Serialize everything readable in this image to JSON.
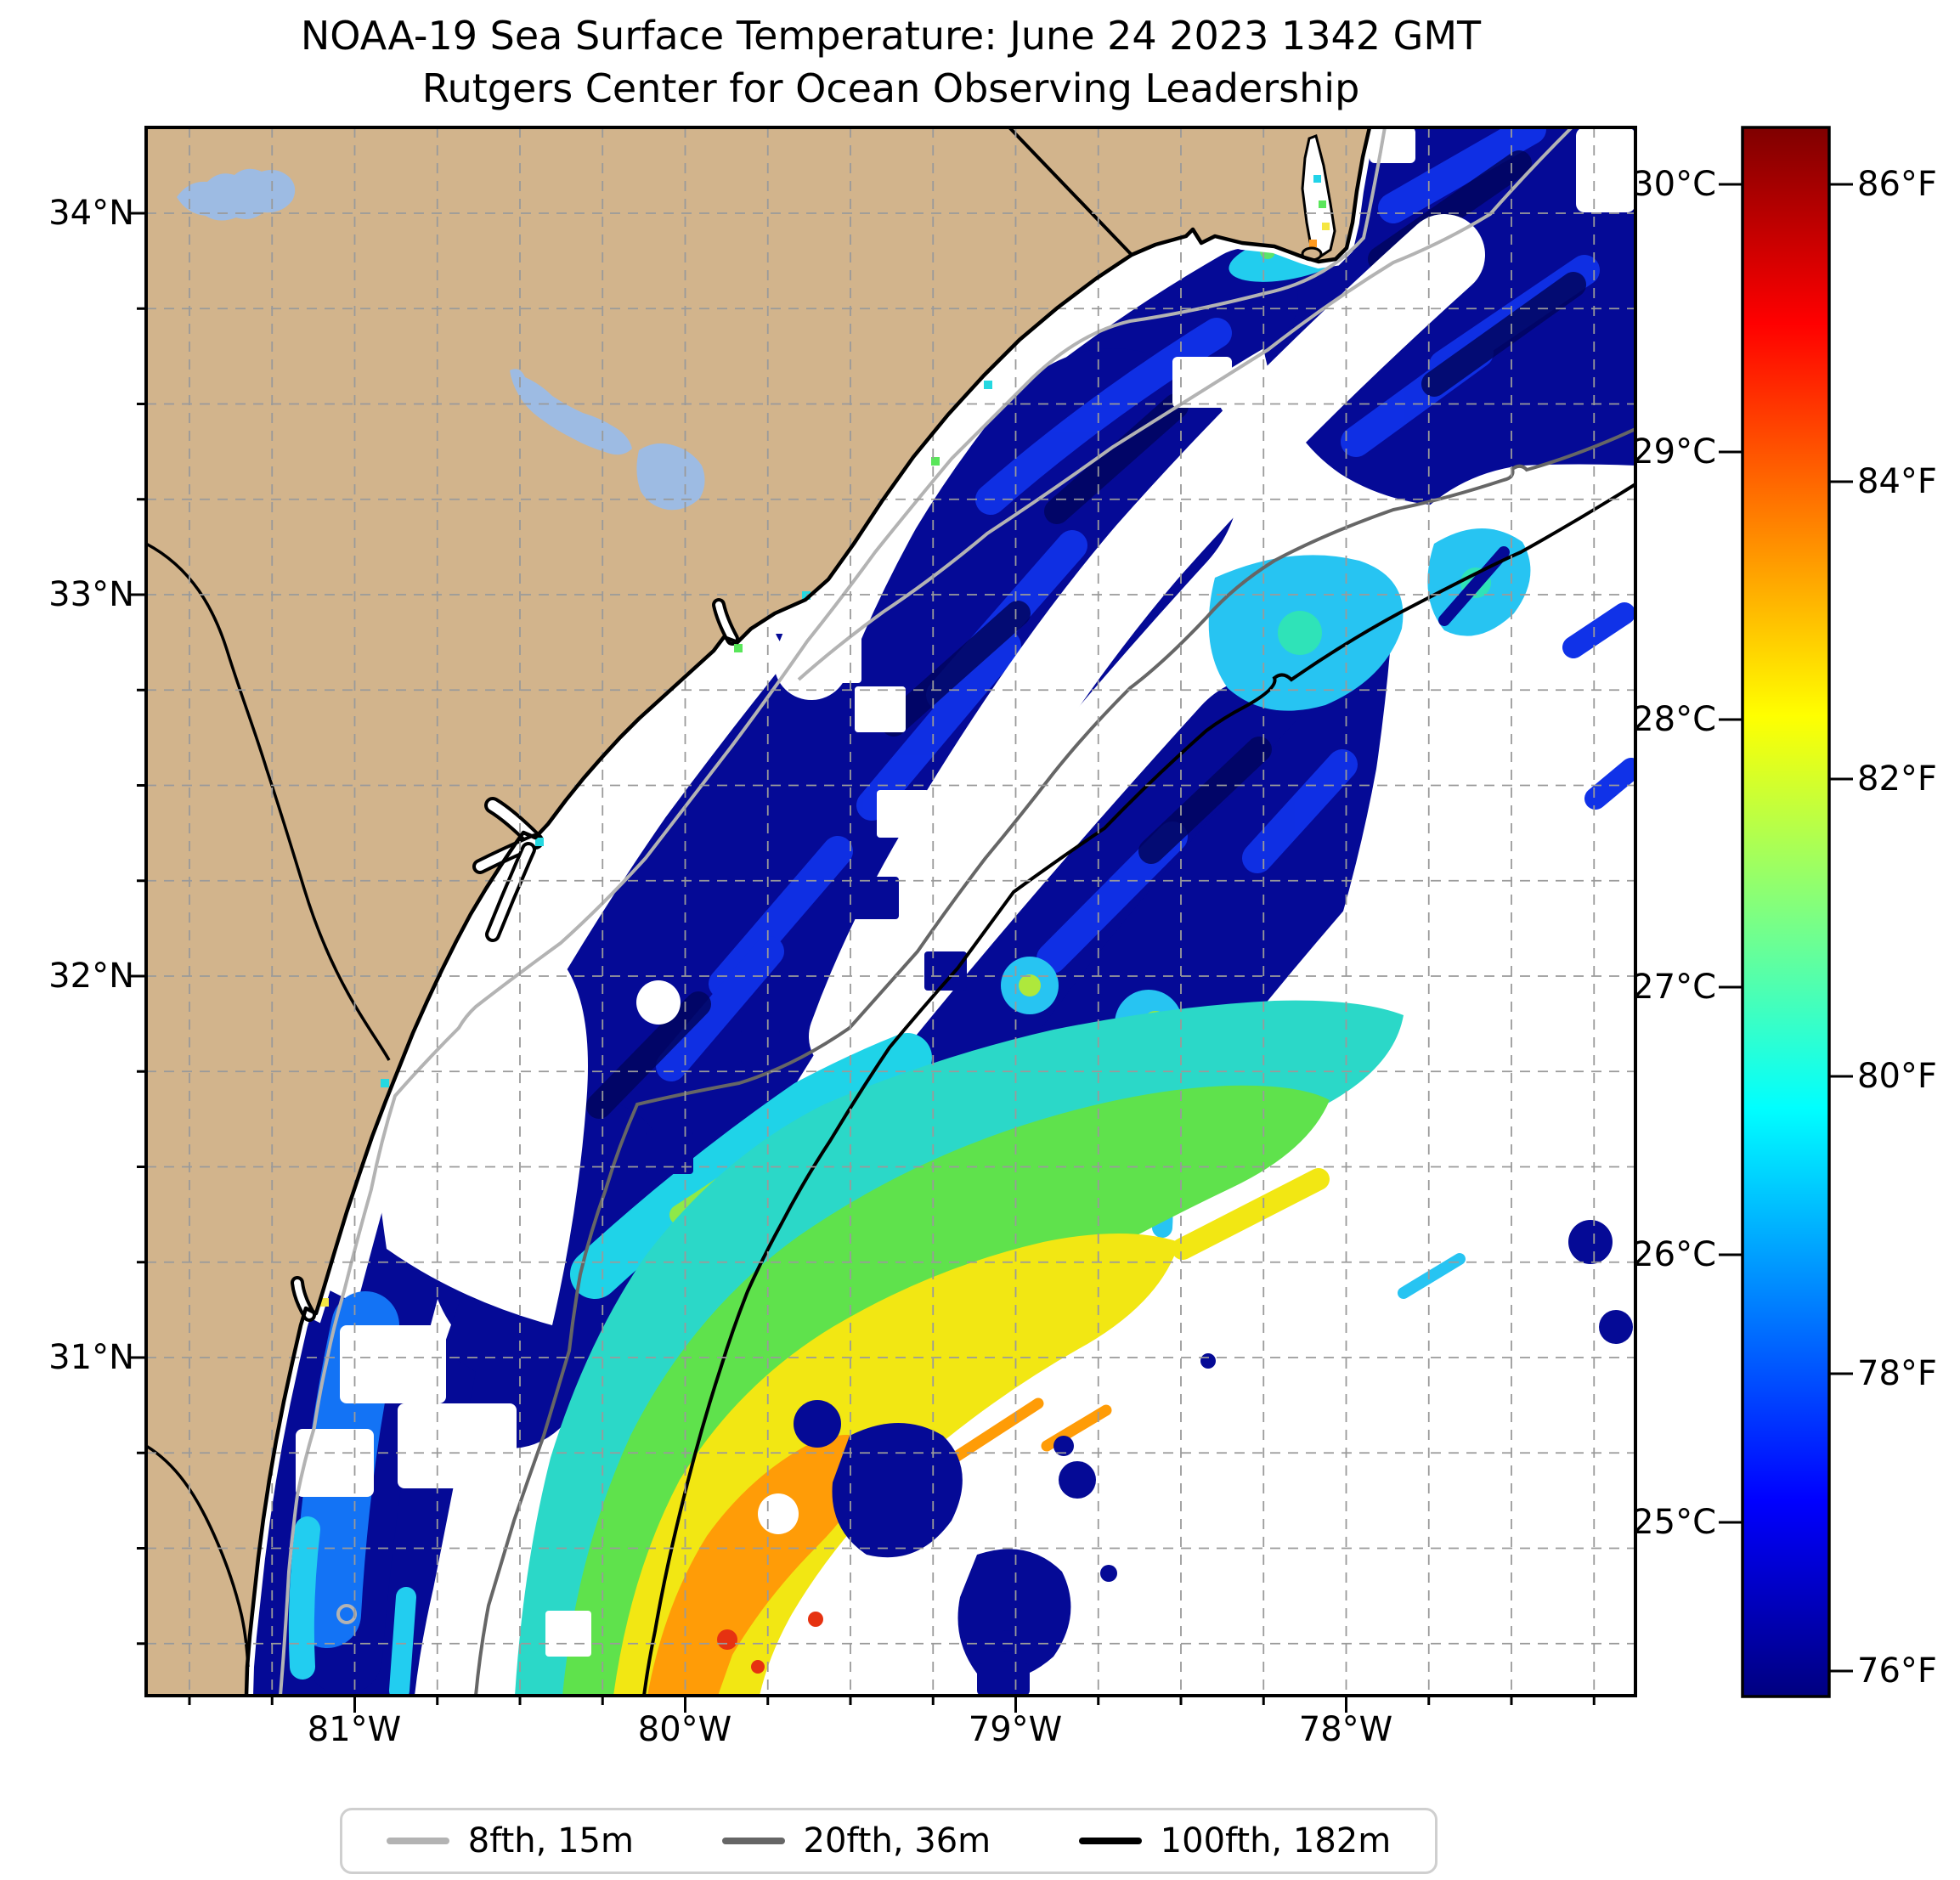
{
  "title": {
    "line1": "NOAA-19 Sea Surface Temperature: June 24 2023 1342 GMT",
    "line2": "Rutgers Center for Ocean Observing Leadership"
  },
  "map": {
    "x_axis": {
      "ticks": [
        "81°W",
        "80°W",
        "79°W",
        "78°W"
      ]
    },
    "y_axis": {
      "ticks": [
        "34°N",
        "33°N",
        "32°N",
        "31°N"
      ]
    },
    "grid": "0.25 degree dashed graticule",
    "colors": {
      "land": "#D2B48C",
      "lakes": "#9DBBE3",
      "clouds_no_data": "#FFFFFF",
      "coldest_water": "#050A96",
      "warm_core": "#FF9C07"
    }
  },
  "colorbar": {
    "celsius_labels": [
      "30°C",
      "29°C",
      "28°C",
      "27°C",
      "26°C",
      "25°C"
    ],
    "fahrenheit_labels": [
      "86°F",
      "84°F",
      "82°F",
      "80°F",
      "78°F",
      "76°F"
    ],
    "colormap": "jet"
  },
  "legend": {
    "items": [
      {
        "label": "8fth, 15m",
        "color": "#b3b3b3"
      },
      {
        "label": "20fth, 36m",
        "color": "#666666"
      },
      {
        "label": "100fth, 182m",
        "color": "#000000"
      }
    ]
  },
  "chart_data": {
    "type": "heatmap",
    "title": "NOAA-19 Sea Surface Temperature: June 24 2023 1342 GMT",
    "subtitle": "Rutgers Center for Ocean Observing Leadership",
    "x_ticks": [
      "81°W",
      "80°W",
      "79°W",
      "78°W"
    ],
    "y_ticks": [
      "34°N",
      "33°N",
      "32°N",
      "31°N"
    ],
    "colorbar": {
      "celsius_ticks": [
        30,
        29,
        28,
        27,
        26,
        25
      ],
      "fahrenheit_ticks": [
        86,
        84,
        82,
        80,
        78,
        76
      ],
      "colormap": "jet",
      "approx_range_c": [
        24.4,
        30.2
      ]
    },
    "legend_position": "bottom",
    "grid": "on (0.25° dashed)",
    "contours": [
      {
        "label": "8fth, 15m",
        "depth_fathoms": 8,
        "depth_meters": 15,
        "color": "#b3b3b3"
      },
      {
        "label": "20fth, 36m",
        "depth_fathoms": 20,
        "depth_meters": 36,
        "color": "#666666"
      },
      {
        "label": "100fth, 182m",
        "depth_fathoms": 100,
        "depth_meters": 182,
        "color": "#000000"
      }
    ],
    "features": [
      "Tan land mass (South Carolina / Georgia coast) upper-left with light-blue lakes",
      "Cold shelf water ~76°F (dark navy) along coast and mid-shelf",
      "Warm Gulf Stream filament 80-86°F (green/yellow/orange, small red maxima) lower center near 30.5N 80W",
      "White areas are clouds / no data, largest southeast of the 100-fathom line"
    ]
  }
}
